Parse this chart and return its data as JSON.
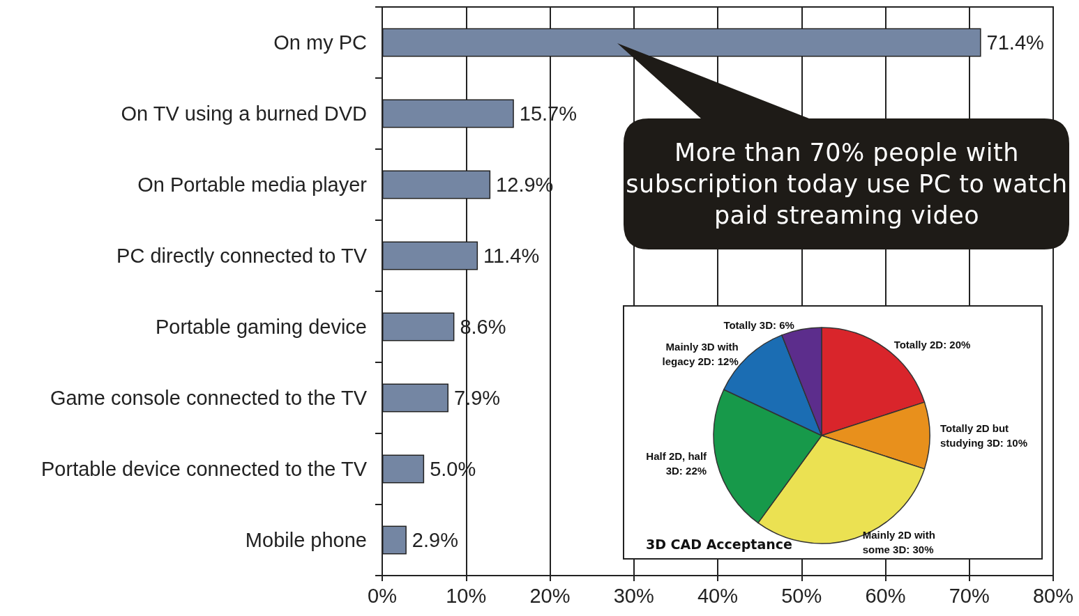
{
  "chart_data": [
    {
      "type": "bar",
      "orientation": "horizontal",
      "categories": [
        "On my PC",
        "On TV using a burned DVD",
        "On Portable media player",
        "PC directly connected to TV",
        "Portable gaming device",
        "Game console connected to the TV",
        "Portable device connected to the TV",
        "Mobile phone"
      ],
      "values": [
        71.4,
        15.7,
        12.9,
        11.4,
        8.6,
        7.9,
        5.0,
        2.9
      ],
      "color": "#7486a3",
      "value_labels": [
        "71.4%",
        "15.7%",
        "12.9%",
        "11.4%",
        "8.6%",
        "7.9%",
        "5.0%",
        "2.9%"
      ],
      "xlim": [
        0,
        80
      ],
      "xticks": [
        {
          "value": 0,
          "label": "0%"
        },
        {
          "value": 10,
          "label": "10%"
        },
        {
          "value": 20,
          "label": "20%"
        },
        {
          "value": 30,
          "label": "30%"
        },
        {
          "value": 40,
          "label": "40%"
        },
        {
          "value": 50,
          "label": "50%"
        },
        {
          "value": 60,
          "label": "60%"
        },
        {
          "value": 70,
          "label": "70%"
        },
        {
          "value": 80,
          "label": "80%"
        }
      ],
      "grid": "x",
      "annotations": [
        "More than 70% people with subscription today use PC to watch paid streaming video"
      ]
    },
    {
      "type": "pie",
      "title": "3D CAD Acceptance",
      "categories": [
        "Totally 2D",
        "Totally 2D but studying 3D",
        "Mainly 2D with some 3D",
        "Half 2D, half 3D",
        "Mainly 3D with legacy 2D",
        "Totally 3D"
      ],
      "values": [
        20,
        10,
        30,
        22,
        12,
        6
      ],
      "colors": [
        "#d9252b",
        "#e8901c",
        "#ebe152",
        "#17994a",
        "#1b6db3",
        "#5c2d8c"
      ],
      "value_labels": [
        "20%",
        "10%",
        "30%",
        "22%",
        "12%",
        "6%"
      ]
    }
  ]
}
